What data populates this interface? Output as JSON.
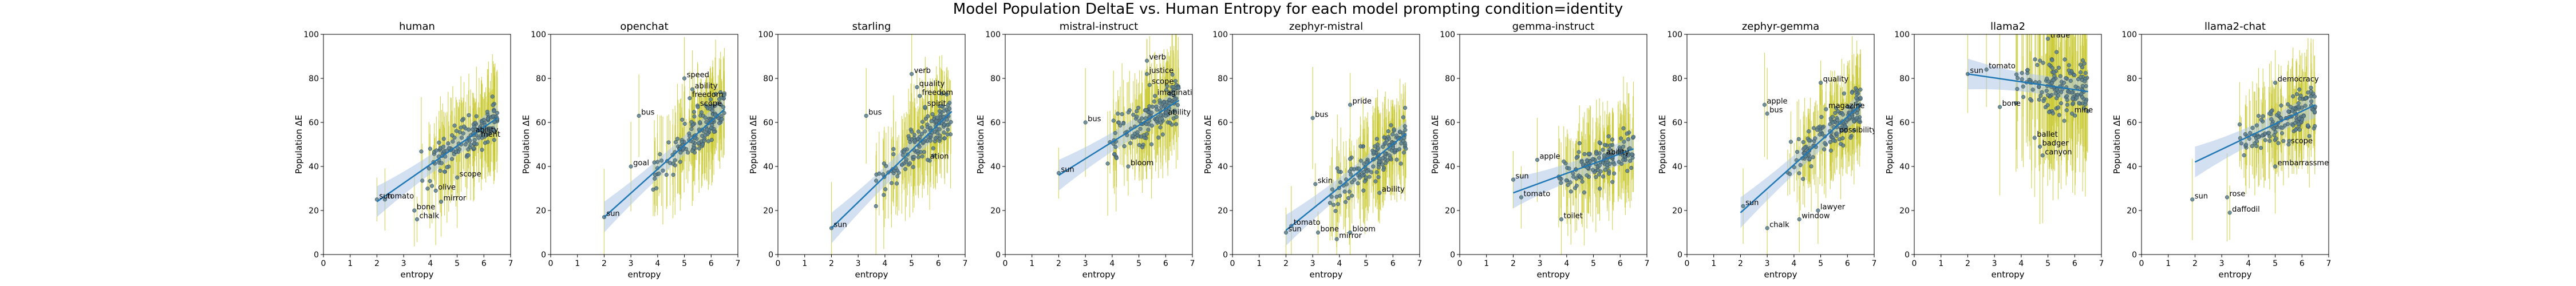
{
  "figure": {
    "title": "Model Population DeltaE vs. Human Entropy for each model prompting condition=identity",
    "point_color": "#5a7f8e",
    "errorbar_color": "#c8c832",
    "fit_color": "#1f77b4",
    "band_color": "#aec7e8"
  },
  "chart_data": [
    {
      "type": "scatter",
      "title": "human",
      "xlabel": "entropy",
      "ylabel": "Population ΔE",
      "xlim": [
        0,
        7
      ],
      "ylim": [
        0,
        100
      ],
      "xticks": [
        "0",
        "1",
        "2",
        "3",
        "4",
        "5",
        "6",
        "7"
      ],
      "yticks": [
        "0",
        "20",
        "40",
        "60",
        "80",
        "100"
      ],
      "fit": {
        "x": [
          2,
          6.5
        ],
        "y": [
          24,
          62
        ]
      },
      "labels": [
        {
          "text": "tomato",
          "x": 2.3,
          "y": 25
        },
        {
          "text": "sun",
          "x": 2.0,
          "y": 25
        },
        {
          "text": "bone",
          "x": 3.4,
          "y": 20
        },
        {
          "text": "chalk",
          "x": 3.5,
          "y": 16
        },
        {
          "text": "mirror",
          "x": 4.4,
          "y": 24
        },
        {
          "text": "scope",
          "x": 5.0,
          "y": 35
        },
        {
          "text": "olive",
          "x": 4.2,
          "y": 29
        },
        {
          "text": "ability",
          "x": 5.6,
          "y": 55
        },
        {
          "text": "ment",
          "x": 5.8,
          "y": 53
        }
      ]
    },
    {
      "type": "scatter",
      "title": "openchat",
      "xlabel": "entropy",
      "ylabel": "Population ΔE",
      "xlim": [
        0,
        7
      ],
      "ylim": [
        0,
        100
      ],
      "xticks": [
        "0",
        "1",
        "2",
        "3",
        "4",
        "5",
        "6",
        "7"
      ],
      "yticks": [
        "0",
        "20",
        "40",
        "60",
        "80",
        "100"
      ],
      "fit": {
        "x": [
          2,
          6.5
        ],
        "y": [
          17,
          66
        ]
      },
      "labels": [
        {
          "text": "speed",
          "x": 5.0,
          "y": 80
        },
        {
          "text": "ability",
          "x": 5.3,
          "y": 75
        },
        {
          "text": "freedom",
          "x": 5.2,
          "y": 71
        },
        {
          "text": "scope",
          "x": 5.5,
          "y": 67
        },
        {
          "text": "bus",
          "x": 3.3,
          "y": 63
        },
        {
          "text": "sun",
          "x": 2.0,
          "y": 17
        },
        {
          "text": "goal",
          "x": 3.0,
          "y": 40
        }
      ]
    },
    {
      "type": "scatter",
      "title": "starling",
      "xlabel": "entropy",
      "ylabel": "Population ΔE",
      "xlim": [
        0,
        7
      ],
      "ylim": [
        0,
        100
      ],
      "xticks": [
        "0",
        "1",
        "2",
        "3",
        "4",
        "5",
        "6",
        "7"
      ],
      "yticks": [
        "0",
        "20",
        "40",
        "60",
        "80",
        "100"
      ],
      "fit": {
        "x": [
          2,
          6.5
        ],
        "y": [
          12,
          65
        ]
      },
      "labels": [
        {
          "text": "verb",
          "x": 5.0,
          "y": 82
        },
        {
          "text": "quality",
          "x": 5.2,
          "y": 76
        },
        {
          "text": "freedom",
          "x": 5.3,
          "y": 72
        },
        {
          "text": "spirit",
          "x": 5.5,
          "y": 67
        },
        {
          "text": "bus",
          "x": 3.3,
          "y": 63
        },
        {
          "text": "sun",
          "x": 2.0,
          "y": 12
        },
        {
          "text": "ation",
          "x": 5.6,
          "y": 43
        }
      ]
    },
    {
      "type": "scatter",
      "title": "mistral-instruct",
      "xlabel": "entropy",
      "ylabel": "Population ΔE",
      "xlim": [
        0,
        7
      ],
      "ylim": [
        0,
        100
      ],
      "xticks": [
        "0",
        "1",
        "2",
        "3",
        "4",
        "5",
        "6",
        "7"
      ],
      "yticks": [
        "0",
        "20",
        "40",
        "60",
        "80",
        "100"
      ],
      "fit": {
        "x": [
          2,
          6.5
        ],
        "y": [
          36,
          70
        ]
      },
      "labels": [
        {
          "text": "verb",
          "x": 5.3,
          "y": 88
        },
        {
          "text": "justice",
          "x": 5.3,
          "y": 82
        },
        {
          "text": "scope",
          "x": 5.4,
          "y": 77
        },
        {
          "text": "imagination",
          "x": 5.6,
          "y": 72
        },
        {
          "text": "bus",
          "x": 3.0,
          "y": 60
        },
        {
          "text": "ability",
          "x": 6.0,
          "y": 63
        },
        {
          "text": "sun",
          "x": 2.0,
          "y": 37
        },
        {
          "text": "bloom",
          "x": 4.6,
          "y": 40
        }
      ]
    },
    {
      "type": "scatter",
      "title": "zephyr-mistral",
      "xlabel": "entropy",
      "ylabel": "Population ΔE",
      "xlim": [
        0,
        7
      ],
      "ylim": [
        0,
        100
      ],
      "xticks": [
        "0",
        "1",
        "2",
        "3",
        "4",
        "5",
        "6",
        "7"
      ],
      "yticks": [
        "0",
        "20",
        "40",
        "60",
        "80",
        "100"
      ],
      "fit": {
        "x": [
          2,
          6.5
        ],
        "y": [
          11,
          55
        ]
      },
      "labels": [
        {
          "text": "pride",
          "x": 4.4,
          "y": 68
        },
        {
          "text": "bus",
          "x": 3.0,
          "y": 62
        },
        {
          "text": "tomato",
          "x": 2.2,
          "y": 13
        },
        {
          "text": "sun",
          "x": 2.0,
          "y": 10
        },
        {
          "text": "bone",
          "x": 3.2,
          "y": 10
        },
        {
          "text": "mirror",
          "x": 3.9,
          "y": 7
        },
        {
          "text": "bloom",
          "x": 4.4,
          "y": 10
        },
        {
          "text": "ability",
          "x": 5.5,
          "y": 28
        },
        {
          "text": "skin",
          "x": 3.1,
          "y": 32
        }
      ]
    },
    {
      "type": "scatter",
      "title": "gemma-instruct",
      "xlabel": "entropy",
      "ylabel": "Population ΔE",
      "xlim": [
        0,
        7
      ],
      "ylim": [
        0,
        100
      ],
      "xticks": [
        "0",
        "1",
        "2",
        "3",
        "4",
        "5",
        "6",
        "7"
      ],
      "yticks": [
        "0",
        "20",
        "40",
        "60",
        "80",
        "100"
      ],
      "fit": {
        "x": [
          2,
          6.5
        ],
        "y": [
          28,
          48
        ]
      },
      "labels": [
        {
          "text": "apple",
          "x": 2.9,
          "y": 43
        },
        {
          "text": "sun",
          "x": 2.0,
          "y": 34
        },
        {
          "text": "tomato",
          "x": 2.3,
          "y": 26
        },
        {
          "text": "toilet",
          "x": 3.8,
          "y": 16
        },
        {
          "text": "ability",
          "x": 5.4,
          "y": 45
        }
      ]
    },
    {
      "type": "scatter",
      "title": "zephyr-gemma",
      "xlabel": "entropy",
      "ylabel": "Population ΔE",
      "xlim": [
        0,
        7
      ],
      "ylim": [
        0,
        100
      ],
      "xticks": [
        "0",
        "1",
        "2",
        "3",
        "4",
        "5",
        "6",
        "7"
      ],
      "yticks": [
        "0",
        "20",
        "40",
        "60",
        "80",
        "100"
      ],
      "fit": {
        "x": [
          2,
          6.5
        ],
        "y": [
          19,
          68
        ]
      },
      "labels": [
        {
          "text": "apple",
          "x": 2.9,
          "y": 68
        },
        {
          "text": "bus",
          "x": 3.0,
          "y": 64
        },
        {
          "text": "quality",
          "x": 5.0,
          "y": 78
        },
        {
          "text": "magazine",
          "x": 5.2,
          "y": 66
        },
        {
          "text": "possibility",
          "x": 5.6,
          "y": 55
        },
        {
          "text": "sun",
          "x": 2.1,
          "y": 22
        },
        {
          "text": "chalk",
          "x": 3.0,
          "y": 12
        },
        {
          "text": "window",
          "x": 4.2,
          "y": 16
        },
        {
          "text": "lawyer",
          "x": 4.9,
          "y": 20
        }
      ]
    },
    {
      "type": "scatter",
      "title": "llama2",
      "xlabel": "entropy",
      "ylabel": "Population ΔE",
      "xlim": [
        0,
        7
      ],
      "ylim": [
        0,
        100
      ],
      "xticks": [
        "0",
        "1",
        "2",
        "3",
        "4",
        "5",
        "6",
        "7"
      ],
      "yticks": [
        "0",
        "20",
        "40",
        "60",
        "80",
        "100"
      ],
      "fit": {
        "x": [
          2,
          6.5
        ],
        "y": [
          82,
          74
        ]
      },
      "labels": [
        {
          "text": "tomato",
          "x": 2.7,
          "y": 84
        },
        {
          "text": "sun",
          "x": 2.0,
          "y": 82
        },
        {
          "text": "bone",
          "x": 3.2,
          "y": 67
        },
        {
          "text": "badger",
          "x": 4.7,
          "y": 49
        },
        {
          "text": "canyon",
          "x": 4.8,
          "y": 45
        },
        {
          "text": "ballet",
          "x": 4.5,
          "y": 53
        },
        {
          "text": "trade",
          "x": 5.0,
          "y": 98
        },
        {
          "text": "mine",
          "x": 5.9,
          "y": 64
        }
      ]
    },
    {
      "type": "scatter",
      "title": "llama2-chat",
      "xlabel": "entropy",
      "ylabel": "Population ΔE",
      "xlim": [
        0,
        7
      ],
      "ylim": [
        0,
        100
      ],
      "xticks": [
        "0",
        "1",
        "2",
        "3",
        "4",
        "5",
        "6",
        "7"
      ],
      "yticks": [
        "0",
        "20",
        "40",
        "60",
        "80",
        "100"
      ],
      "fit": {
        "x": [
          2,
          6.5
        ],
        "y": [
          42,
          68
        ]
      },
      "labels": [
        {
          "text": "democracy",
          "x": 5.0,
          "y": 78
        },
        {
          "text": "sun",
          "x": 1.9,
          "y": 25
        },
        {
          "text": "rose",
          "x": 3.2,
          "y": 26
        },
        {
          "text": "daffodil",
          "x": 3.3,
          "y": 19
        },
        {
          "text": "embarrassment",
          "x": 5.0,
          "y": 40
        },
        {
          "text": "scope",
          "x": 5.5,
          "y": 50
        }
      ]
    }
  ]
}
